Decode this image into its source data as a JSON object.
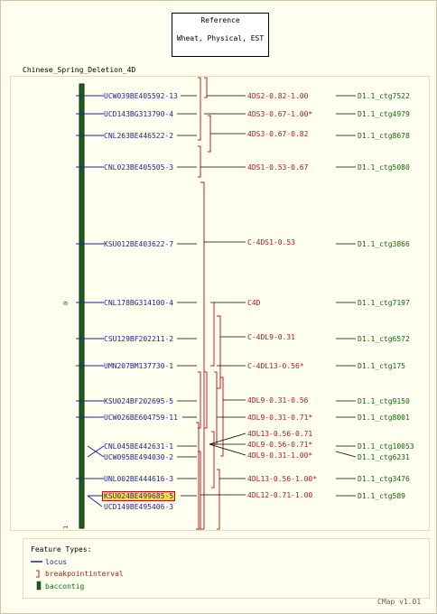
{
  "reference": {
    "title": "Reference",
    "subtitle": "Wheat, Physical, EST"
  },
  "map_title": "Chinese_Spring_Deletion_4D",
  "axis": {
    "start": "0",
    "end": "1"
  },
  "loci": [
    "UCW039BE405592-13",
    "UCD143BG313790-4",
    "CNL263BE446522-2",
    "CNL023BE405505-3",
    "KSU012BE403622-7",
    "CNL178BG314100-4",
    "CSU129BF202211-2",
    "UMN207BM137730-1",
    "KSU024BF202695-5",
    "UCW026BE604759-11",
    "CNL045BE442631-1",
    "UCW095BE494030-2",
    "UNL002BE444616-3",
    "KSU024BE499685-5",
    "UCD149BE495406-3"
  ],
  "breakpoints": [
    "4DS2-0.82-1.00",
    "4DS3-0.67-1.00*",
    "4DS3-0.67-0.82",
    "4DS1-0.53-0.67",
    "C-4DS1-0.53",
    "C4D",
    "C-4DL9-0.31",
    "C-4DL13-0.56*",
    "4DL9-0.31-0.56",
    "4DL9-0.31-0.71*",
    "4DL13-0.56-0.71",
    "4DL9-0.56-0.71*",
    "4DL9-0.31-1.00*",
    "4DL13-0.56-1.00*",
    "4DL12-0.71-1.00"
  ],
  "contigs": [
    "D1.1_ctg7522",
    "D1.1_ctg4979",
    "D1.1_ctg8678",
    "D1.1_ctg5080",
    "D1.1_ctg3866",
    "D1.1_ctg7197",
    "D1.1_ctg6572",
    "D1.1_ctg175",
    "D1.1_ctg9150",
    "D1.1_ctg8001",
    "D1.1_ctg10053",
    "D1.1_ctg6231",
    "D1.1_ctg3476",
    "D1.1_ctg589"
  ],
  "legend": {
    "title": "Feature Types:",
    "items": [
      "locus",
      "breakpointinterval",
      "baccontig"
    ]
  },
  "footer": "CMap v1.01",
  "colors": {
    "locus": "#22229a",
    "breakpoint": "#b01818",
    "contig": "#0a6a0a",
    "highlight": "#ffdd44"
  }
}
